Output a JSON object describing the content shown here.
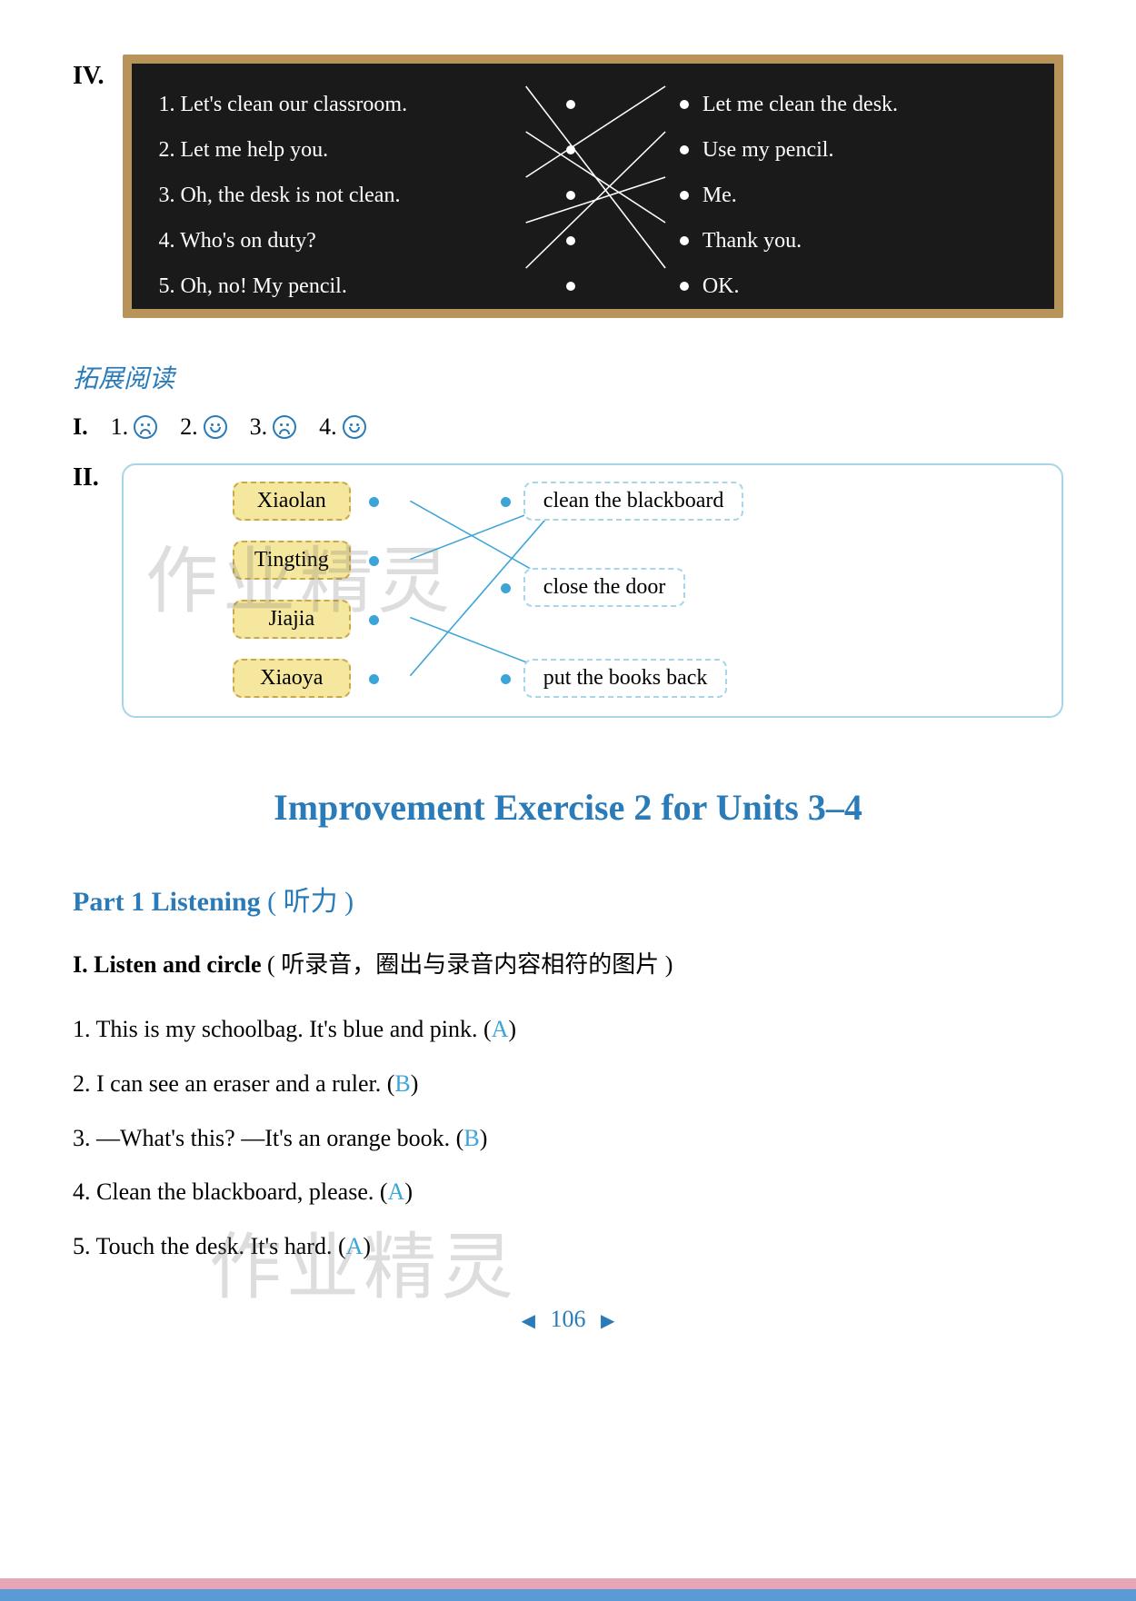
{
  "section_iv": {
    "label": "IV.",
    "blackboard": {
      "background": "#1a1a1a",
      "border_color": "#b8935a",
      "text_color": "#ffffff",
      "line_color": "#ffffff",
      "dot_color": "#ffffff",
      "left": [
        "1. Let's clean our classroom.",
        "2. Let me help you.",
        "3. Oh, the desk is not clean.",
        "4. Who's on duty?",
        "5. Oh, no! My pencil."
      ],
      "right": [
        "Let me clean the desk.",
        "Use my pencil.",
        "Me.",
        "Thank you.",
        "OK."
      ],
      "connections": [
        [
          0,
          4
        ],
        [
          1,
          3
        ],
        [
          2,
          0
        ],
        [
          3,
          2
        ],
        [
          4,
          1
        ]
      ]
    }
  },
  "reading": {
    "title": "拓展阅读",
    "section_i_label": "I.",
    "faces": [
      {
        "num": "1.",
        "mood": "sad"
      },
      {
        "num": "2.",
        "mood": "happy"
      },
      {
        "num": "3.",
        "mood": "sad"
      },
      {
        "num": "4.",
        "mood": "happy"
      }
    ],
    "section_ii": {
      "label": "II.",
      "names": [
        "Xiaolan",
        "Tingting",
        "Jiajia",
        "Xiaoya"
      ],
      "actions": [
        "clean the blackboard",
        "close the door",
        "put the books back"
      ],
      "name_box_bg": "#f5e79d",
      "name_box_border": "#c9a94d",
      "action_box_border": "#a8d5e8",
      "dot_color": "#3ba5d8",
      "line_color": "#3ba5d8",
      "connections": [
        [
          0,
          1
        ],
        [
          1,
          0
        ],
        [
          2,
          2
        ],
        [
          3,
          0
        ]
      ]
    }
  },
  "main_title": "Improvement Exercise 2 for Units 3–4",
  "part1": {
    "title_en": "Part 1    Listening",
    "title_cn": " ( 听力 )",
    "instruction_en": "I. Listen and circle",
    "instruction_cn": " ( 听录音，圈出与录音内容相符的图片 )",
    "items": [
      {
        "text": "1. This is my schoolbag. It's blue and pink. (",
        "answer": "A",
        "close": ")"
      },
      {
        "text": "2. I can see an eraser and a ruler. (",
        "answer": "B",
        "close": ")"
      },
      {
        "text": "3. —What's this? —It's an orange book. (",
        "answer": "B",
        "close": ")"
      },
      {
        "text": "4. Clean the blackboard, please. (",
        "answer": "A",
        "close": ")"
      },
      {
        "text": "5. Touch the desk. It's hard. (",
        "answer": "A",
        "close": ")"
      }
    ],
    "answer_color": "#3ba5d8"
  },
  "page_number": "106",
  "watermark_text": "作业精灵",
  "colors": {
    "blue_title": "#2a7bb8",
    "footer_pink": "#e8a5b8",
    "footer_blue": "#5b9bd5"
  }
}
